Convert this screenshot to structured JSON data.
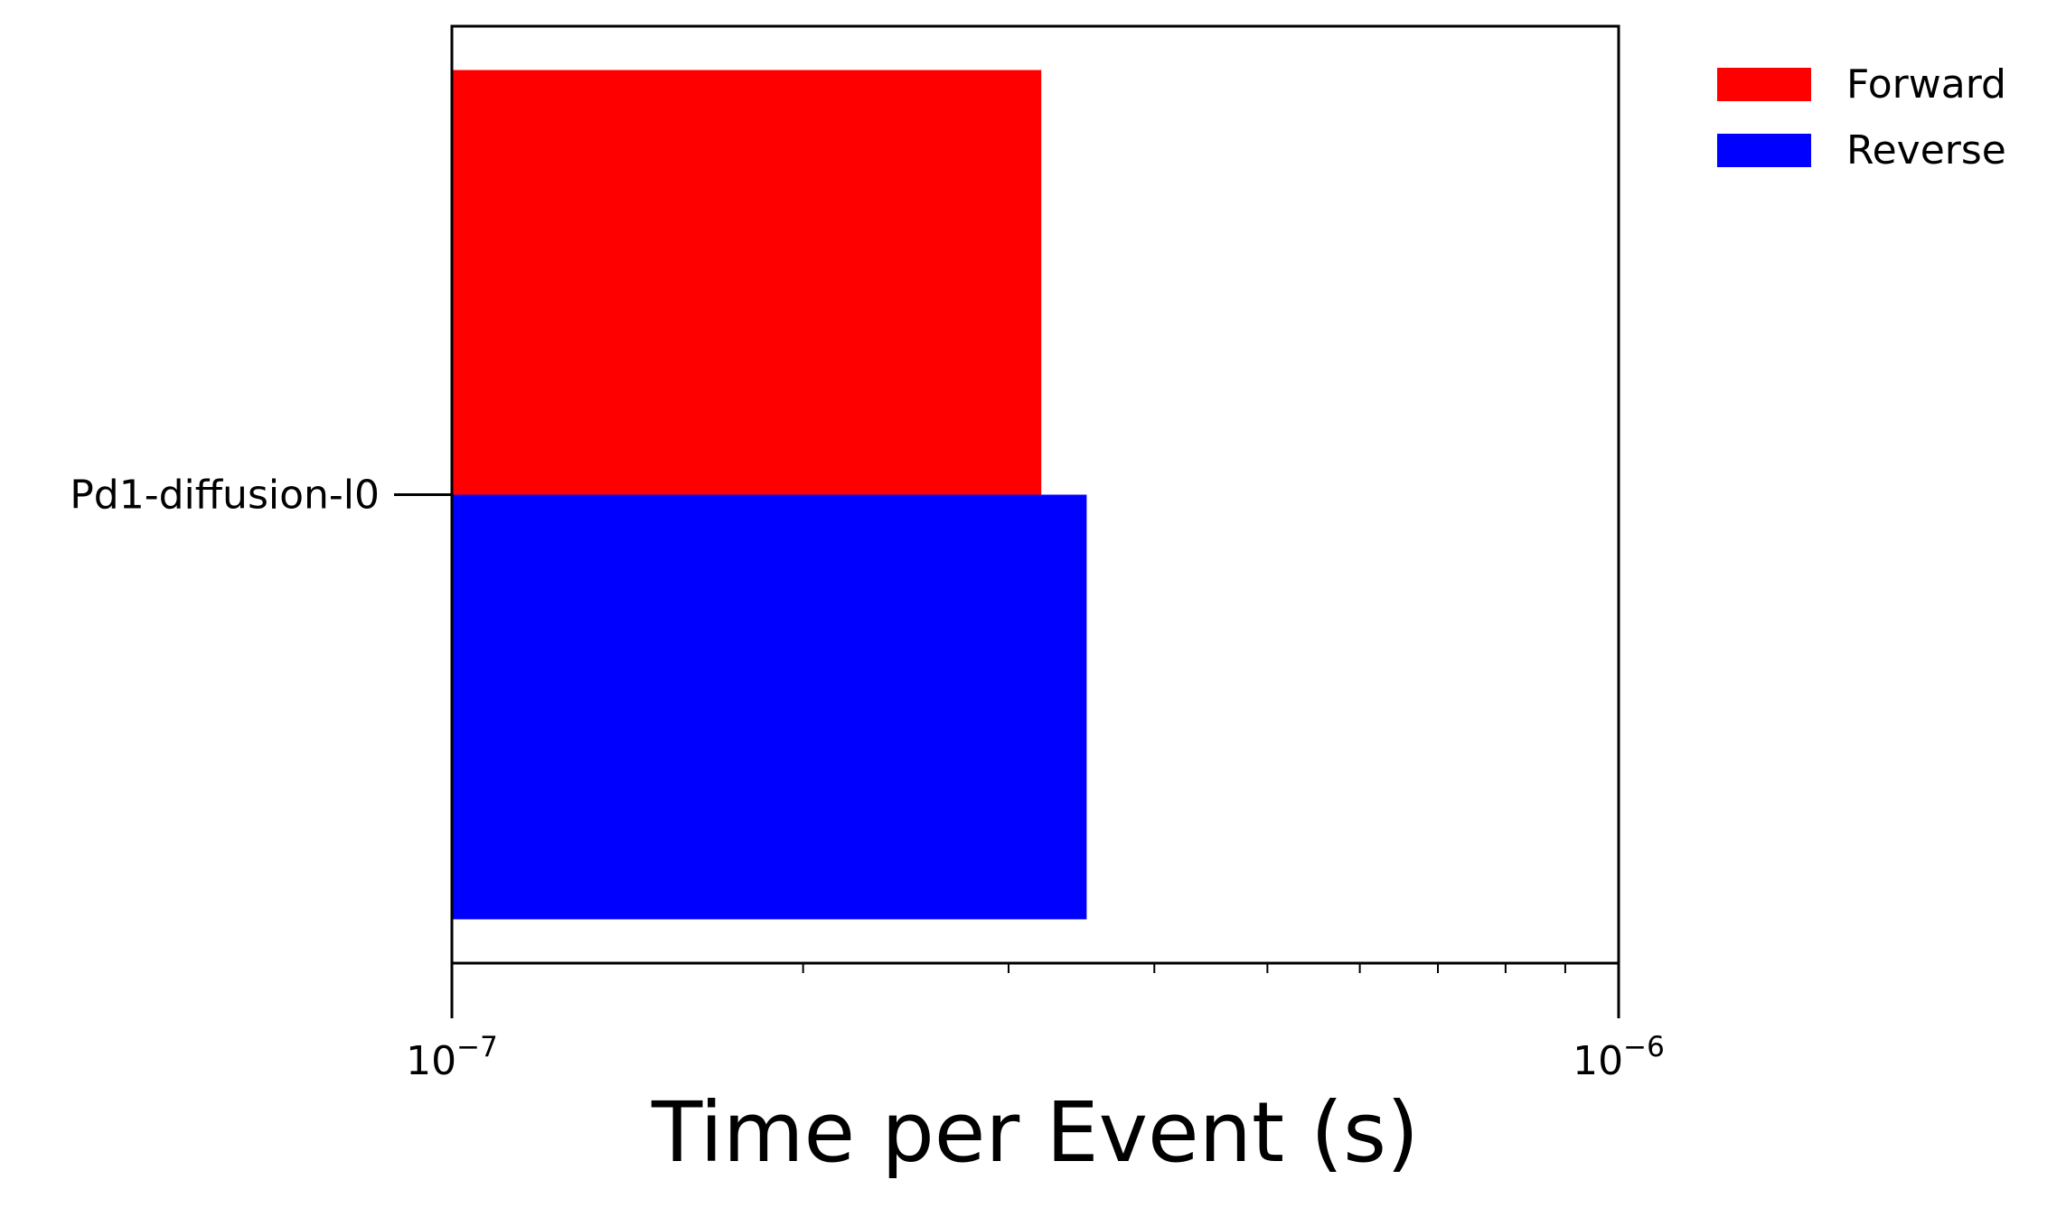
{
  "chart_data": {
    "type": "bar",
    "orientation": "horizontal",
    "categories": [
      "Pd1-diffusion-l0"
    ],
    "series": [
      {
        "name": "Forward",
        "color": "#ff0000",
        "values": [
          3.2e-07
        ]
      },
      {
        "name": "Reverse",
        "color": "#0000ff",
        "values": [
          3.5e-07
        ]
      }
    ],
    "xlabel": "Time per Event (s)",
    "ylabel": "",
    "xscale": "log",
    "xlim": [
      1e-07,
      1e-06
    ],
    "xticks": [
      {
        "value": 1e-07,
        "base": "10",
        "exp": "−7"
      },
      {
        "value": 1e-06,
        "base": "10",
        "exp": "−6"
      }
    ],
    "grid": false,
    "legend_position": "outside-top-right"
  }
}
